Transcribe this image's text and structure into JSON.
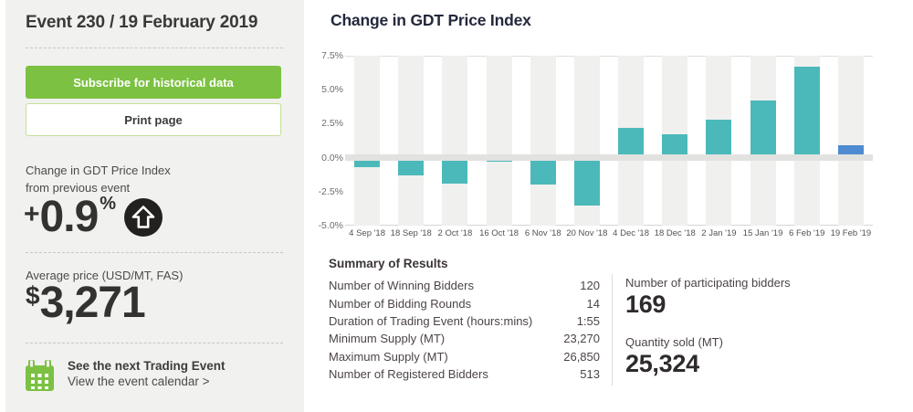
{
  "sidebar": {
    "title": "Event 230 / 19 February 2019",
    "subscribe_label": "Subscribe for historical data",
    "print_label": "Print page",
    "change_label_line1": "Change in GDT Price Index",
    "change_label_line2": "from previous event",
    "change_sign": "+",
    "change_value": "0.9",
    "change_unit": "%",
    "avg_price_label": "Average price (USD/MT, FAS)",
    "avg_price_currency": "$",
    "avg_price_value": "3,271",
    "next_event_title": "See the next Trading Event",
    "next_event_link": "View the event calendar >"
  },
  "chart": {
    "title": "Change in GDT Price Index"
  },
  "chart_data": {
    "type": "bar",
    "title": "Change in GDT Price Index",
    "categories": [
      "4 Sep '18",
      "18 Sep '18",
      "2 Oct '18",
      "16 Oct '18",
      "6 Nov '18",
      "20 Nov '18",
      "4 Dec '18",
      "18 Dec '18",
      "2 Jan '19",
      "15 Jan '19",
      "6 Feb '19",
      "19 Feb '19"
    ],
    "values": [
      -0.7,
      -1.3,
      -1.9,
      -0.3,
      -2.0,
      -3.5,
      2.2,
      1.7,
      2.8,
      4.2,
      6.7,
      0.9
    ],
    "xlabel": "",
    "ylabel": "",
    "ylim": [
      -5.0,
      7.5
    ],
    "yticks": [
      "7.5%",
      "5.0%",
      "2.5%",
      "0.0%",
      "-2.5%",
      "-5.0%"
    ],
    "grid": "horizontal-zero-band",
    "legend": "none",
    "bar_color": "#4bb9ba",
    "highlight_color": "#4e8bd0",
    "highlight_index": 11
  },
  "summary": {
    "heading": "Summary of Results",
    "rows": [
      {
        "label": "Number of Winning Bidders",
        "value": "120"
      },
      {
        "label": "Number of Bidding Rounds",
        "value": "14"
      },
      {
        "label": "Duration of Trading Event (hours:mins)",
        "value": "1:55"
      },
      {
        "label": "Minimum Supply (MT)",
        "value": "23,270"
      },
      {
        "label": "Maximum Supply (MT)",
        "value": "26,850"
      },
      {
        "label": "Number of Registered Bidders",
        "value": "513"
      }
    ],
    "participating": {
      "label": "Number of participating bidders",
      "value": "169"
    },
    "quantity": {
      "label": "Quantity sold (MT)",
      "value": "25,324"
    }
  },
  "colors": {
    "accent_green": "#7cc142",
    "bar_teal": "#4bb9ba",
    "bar_blue": "#4e8bd0",
    "sidebar_bg": "#f1f1ef",
    "icon_dark": "#222120"
  },
  "icons": {
    "up_arrow": "up-arrow-in-circle",
    "calendar": "calendar-grid"
  }
}
